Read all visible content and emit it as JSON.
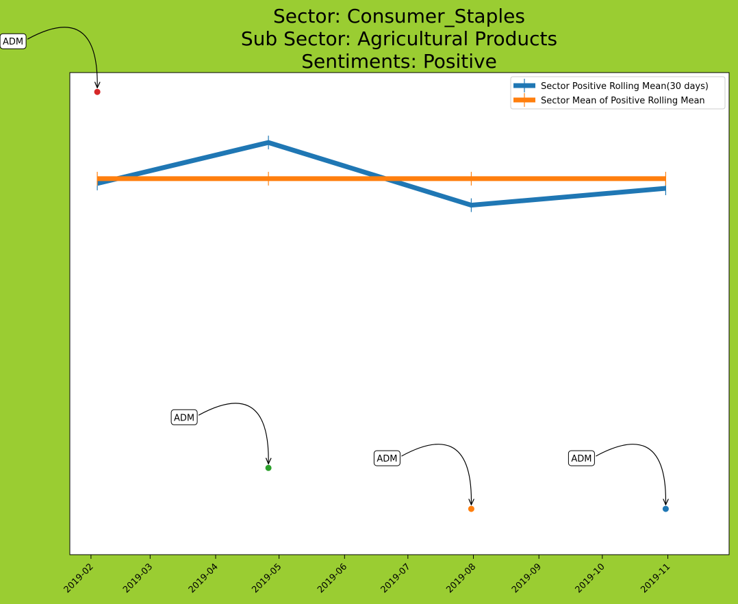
{
  "chart_data": {
    "type": "line",
    "title_lines": [
      "Sector:  Consumer_Staples",
      "Sub Sector:  Agricultural Products",
      "Sentiments:  Positive"
    ],
    "xlabel": "",
    "ylabel": "",
    "x_ticks": [
      "2019-02",
      "2019-03",
      "2019-04",
      "2019-05",
      "2019-06",
      "2019-07",
      "2019-08",
      "2019-09",
      "2019-10",
      "2019-11"
    ],
    "x_range": [
      "2019-01-22",
      "2019-11-30"
    ],
    "y_range": [
      -0.3,
      9.7
    ],
    "y_ticks_visible": false,
    "grid": false,
    "legend_position": "top-right",
    "series": [
      {
        "name": "Sector Positive Rolling Mean(30 days)",
        "color": "#1f77b4",
        "marker": "vertical-tick",
        "x": [
          "2019-02-04",
          "2019-04-26",
          "2019-07-31",
          "2019-10-31"
        ],
        "y": [
          7.4,
          8.25,
          6.95,
          7.3
        ]
      },
      {
        "name": "Sector Mean of Positive Rolling Mean",
        "color": "#ff7f0e",
        "marker": "vertical-tick",
        "x": [
          "2019-02-04",
          "2019-04-26",
          "2019-07-31",
          "2019-10-31"
        ],
        "y": [
          7.5,
          7.5,
          7.5,
          7.5
        ]
      }
    ],
    "points": [
      {
        "x": "2019-02-04",
        "y": 9.3,
        "color": "#d62728",
        "label": "ADM"
      },
      {
        "x": "2019-04-26",
        "y": 1.5,
        "color": "#2ca02c",
        "label": "ADM"
      },
      {
        "x": "2019-07-31",
        "y": 0.65,
        "color": "#ff7f0e",
        "label": "ADM"
      },
      {
        "x": "2019-10-31",
        "y": 0.65,
        "color": "#1f77b4",
        "label": "ADM"
      }
    ]
  }
}
